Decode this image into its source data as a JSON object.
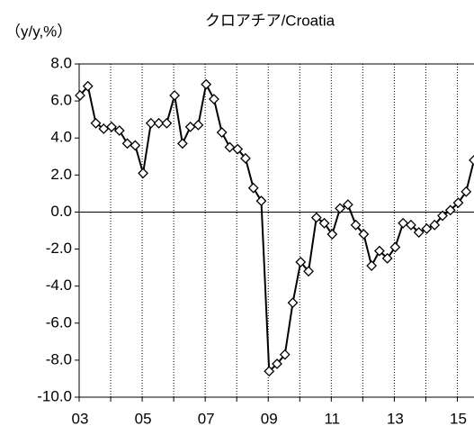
{
  "chart_data": {
    "type": "line",
    "title": "クロアチア/Croatia",
    "y_label": "（y/y,%）",
    "categories": [
      "03",
      null,
      null,
      null,
      null,
      null,
      null,
      null,
      "05",
      null,
      null,
      null,
      null,
      null,
      null,
      null,
      "07",
      null,
      null,
      null,
      null,
      null,
      null,
      null,
      "09",
      null,
      null,
      null,
      null,
      null,
      null,
      null,
      "11",
      null,
      null,
      null,
      null,
      null,
      null,
      null,
      "13",
      null,
      null,
      null,
      null,
      null,
      null,
      null,
      "15",
      null,
      null
    ],
    "series": [
      {
        "name": "Croatia",
        "color": "#000000",
        "values": [
          6.3,
          6.8,
          4.8,
          4.5,
          4.6,
          4.4,
          3.7,
          3.6,
          2.1,
          4.8,
          4.8,
          4.8,
          6.3,
          3.7,
          4.6,
          4.7,
          6.9,
          6.1,
          4.3,
          3.5,
          3.4,
          2.9,
          1.3,
          0.6,
          -8.6,
          -8.2,
          -7.7,
          -4.9,
          -2.7,
          -3.2,
          -0.3,
          -0.6,
          -1.2,
          0.2,
          0.4,
          -0.7,
          -1.2,
          -2.9,
          -2.1,
          -2.5,
          -1.9,
          -0.6,
          -0.7,
          -1.1,
          -0.9,
          -0.7,
          -0.2,
          0.1,
          0.5,
          1.1,
          2.8
        ]
      }
    ],
    "ylim": [
      -10,
      8
    ],
    "yticks": [
      {
        "value": -10,
        "label": "-10.0"
      },
      {
        "value": -8,
        "label": "-8.0"
      },
      {
        "value": -6,
        "label": "-6.0"
      },
      {
        "value": -4,
        "label": "-4.0"
      },
      {
        "value": -2,
        "label": "-2.0"
      },
      {
        "value": 0,
        "label": "0.0"
      },
      {
        "value": 2,
        "label": "2.0"
      },
      {
        "value": 4,
        "label": "4.0"
      },
      {
        "value": 6,
        "label": "6.0"
      },
      {
        "value": 8,
        "label": "8.0"
      }
    ],
    "grid": true
  }
}
